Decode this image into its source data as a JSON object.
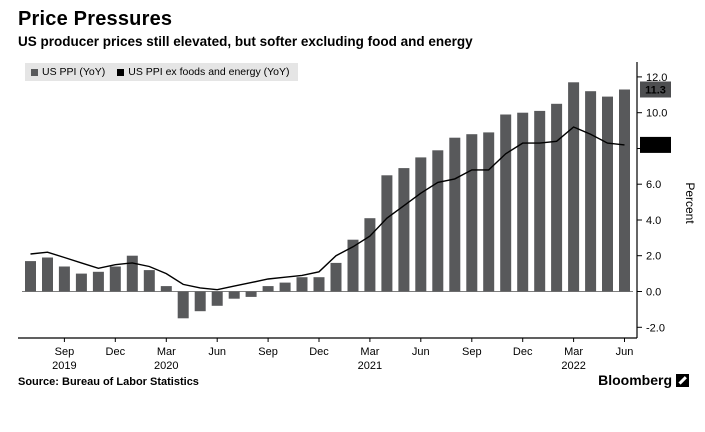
{
  "header": {
    "title": "Price Pressures",
    "subtitle": "US producer prices still elevated, but softer excluding food and energy"
  },
  "legend": {
    "items": [
      {
        "label": "US PPI (YoY)",
        "color": "#58595b"
      },
      {
        "label": "US PPI ex foods and energy (YoY)",
        "color": "#000000"
      }
    ]
  },
  "footer": {
    "source": "Source: Bureau of Labor Statistics",
    "brand": "Bloomberg"
  },
  "chart_data": {
    "type": "bar",
    "title": "Price Pressures",
    "subtitle": "US producer prices still elevated, but softer excluding food and energy",
    "xlabel": "",
    "ylabel": "Percent",
    "ylim": [
      -2.6,
      12.5
    ],
    "yticks": [
      -2,
      0,
      2,
      4,
      6,
      8,
      10,
      12
    ],
    "legend_position": "top-left",
    "grid": false,
    "x": [
      "Jul 2019",
      "Aug 2019",
      "Sep 2019",
      "Oct 2019",
      "Nov 2019",
      "Dec 2019",
      "Jan 2020",
      "Feb 2020",
      "Mar 2020",
      "Apr 2020",
      "May 2020",
      "Jun 2020",
      "Jul 2020",
      "Aug 2020",
      "Sep 2020",
      "Oct 2020",
      "Nov 2020",
      "Dec 2020",
      "Jan 2021",
      "Feb 2021",
      "Mar 2021",
      "Apr 2021",
      "May 2021",
      "Jun 2021",
      "Jul 2021",
      "Aug 2021",
      "Sep 2021",
      "Oct 2021",
      "Nov 2021",
      "Dec 2021",
      "Jan 2022",
      "Feb 2022",
      "Mar 2022",
      "Apr 2022",
      "May 2022",
      "Jun 2022"
    ],
    "series": [
      {
        "name": "US PPI (YoY)",
        "type": "bar",
        "color": "#58595b",
        "values": [
          1.7,
          1.9,
          1.4,
          1.0,
          1.1,
          1.4,
          2.0,
          1.2,
          0.3,
          -1.5,
          -1.1,
          -0.8,
          -0.4,
          -0.3,
          0.3,
          0.5,
          0.8,
          0.8,
          1.6,
          2.9,
          4.1,
          6.5,
          6.9,
          7.5,
          7.9,
          8.6,
          8.8,
          8.9,
          9.9,
          10.0,
          10.1,
          10.5,
          11.7,
          11.2,
          10.9,
          11.3
        ]
      },
      {
        "name": "US PPI ex foods and energy (YoY)",
        "type": "line",
        "color": "#000000",
        "values": [
          2.1,
          2.2,
          1.9,
          1.6,
          1.3,
          1.5,
          1.6,
          1.4,
          1.0,
          0.4,
          0.2,
          0.1,
          0.3,
          0.5,
          0.7,
          0.8,
          0.9,
          1.1,
          2.0,
          2.5,
          3.1,
          4.1,
          4.8,
          5.5,
          6.1,
          6.3,
          6.8,
          6.8,
          7.7,
          8.3,
          8.3,
          8.4,
          9.2,
          8.8,
          8.3,
          8.2
        ]
      }
    ],
    "xticks": [
      {
        "i": 2,
        "label": "Sep",
        "year": "2019"
      },
      {
        "i": 5,
        "label": "Dec"
      },
      {
        "i": 8,
        "label": "Mar",
        "year": "2020"
      },
      {
        "i": 11,
        "label": "Jun"
      },
      {
        "i": 14,
        "label": "Sep"
      },
      {
        "i": 17,
        "label": "Dec"
      },
      {
        "i": 20,
        "label": "Mar",
        "year": "2021"
      },
      {
        "i": 23,
        "label": "Jun"
      },
      {
        "i": 26,
        "label": "Sep"
      },
      {
        "i": 29,
        "label": "Dec"
      },
      {
        "i": 32,
        "label": "Mar",
        "year": "2022"
      },
      {
        "i": 35,
        "label": "Jun"
      }
    ],
    "end_labels": [
      {
        "value": 11.3,
        "text": "11.3",
        "bg": "#4d4e50"
      },
      {
        "value": 8.2,
        "text": "8.2",
        "bg": "#000000"
      }
    ]
  }
}
